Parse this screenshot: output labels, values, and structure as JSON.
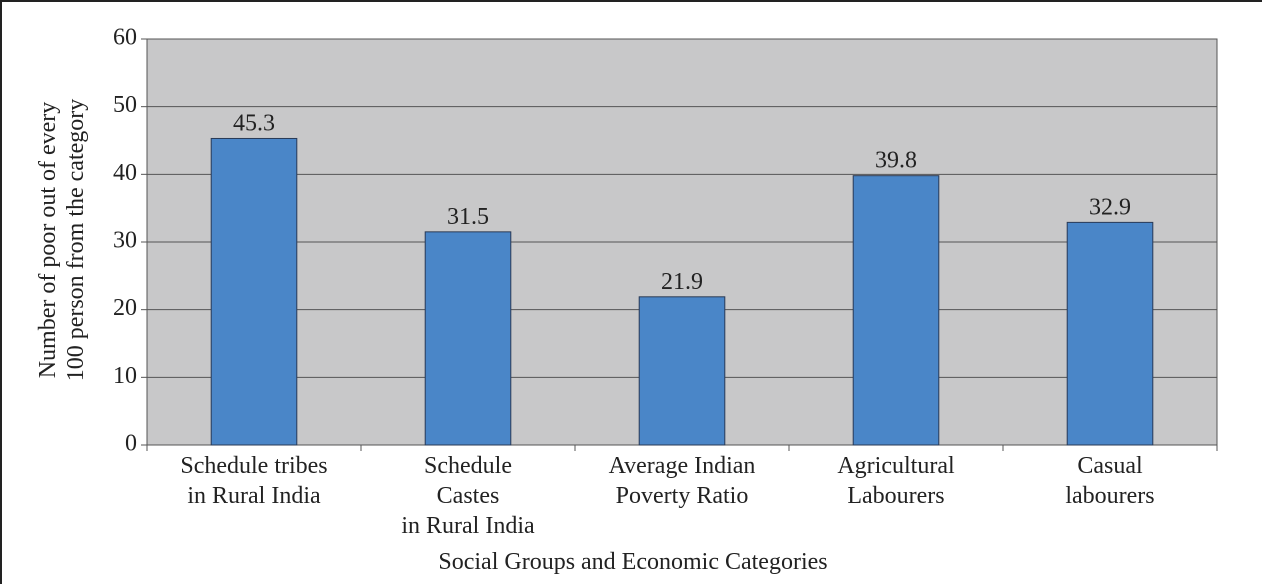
{
  "chart_data": {
    "type": "bar",
    "x_label": "Social Groups and Economic Categories",
    "y_label": "Number of poor out of every\n100 person from the category",
    "categories": [
      "Schedule tribes\nin Rural India",
      "Schedule\nCastes\nin Rural India",
      "Average Indian\nPoverty Ratio",
      "Agricultural\nLabourers",
      "Casual\nlabourers"
    ],
    "values": [
      45.3,
      31.5,
      21.9,
      39.8,
      32.9
    ],
    "color": "#4a86c8",
    "ylim": [
      0,
      60
    ],
    "yticks": [
      0,
      10,
      20,
      30,
      40,
      50,
      60
    ],
    "grid": true
  }
}
